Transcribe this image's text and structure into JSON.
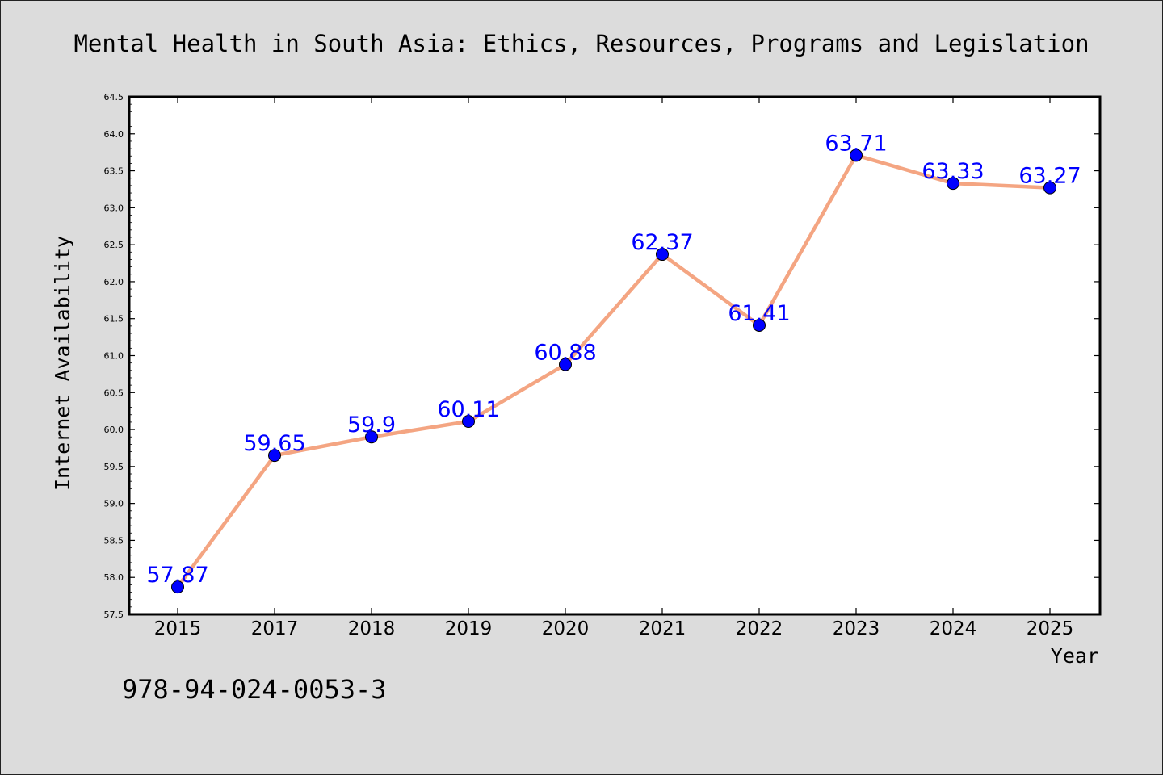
{
  "chart_data": {
    "type": "line",
    "title": "Mental Health in South Asia: Ethics, Resources, Programs and Legislation",
    "xlabel": "Year",
    "ylabel": "Internet Availability",
    "categories": [
      "2015",
      "2017",
      "2018",
      "2019",
      "2020",
      "2021",
      "2022",
      "2023",
      "2024",
      "2025"
    ],
    "values": [
      57.87,
      59.65,
      59.9,
      60.11,
      60.88,
      62.37,
      61.41,
      63.71,
      63.33,
      63.27
    ],
    "data_labels": [
      "57.87",
      "59.65",
      "59.9",
      "60.11",
      "60.88",
      "62.37",
      "61.41",
      "63.71",
      "63.33",
      "63.27"
    ],
    "ylim": [
      57.5,
      64.5
    ],
    "yticks": [
      "57.5",
      "58.0",
      "58.5",
      "59.0",
      "59.5",
      "60.0",
      "60.5",
      "61.0",
      "61.5",
      "62.0",
      "62.5",
      "63.0",
      "63.5",
      "64.0",
      "64.5"
    ],
    "grid": false,
    "legend": "none",
    "colors": {
      "line": "#f4a582",
      "marker": "#0000ff",
      "label": "#0000ff",
      "plot_bg": "#ffffff",
      "figure_bg": "#dcdcdc"
    }
  },
  "footer": {
    "isbn": "978-94-024-0053-3"
  }
}
